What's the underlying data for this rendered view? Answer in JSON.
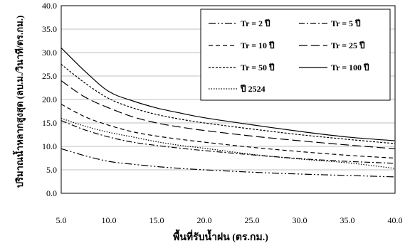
{
  "chart_data": {
    "type": "line",
    "title": "",
    "xlabel": "พื้นที่รับน้ำฝน (ตร.กม.)",
    "ylabel": "ปริมาณน้ำหลากสูงสุด (ลบ.ม./วินาที/ตร.กม.)",
    "xlim": [
      5.0,
      40.0
    ],
    "ylim": [
      0.0,
      40.0
    ],
    "x_ticks": [
      "5.0",
      "10.0",
      "15.0",
      "20.0",
      "25.0",
      "30.0",
      "35.0",
      "40.0"
    ],
    "y_ticks": [
      "0.0",
      "5.0",
      "10.0",
      "15.0",
      "20.0",
      "25.0",
      "30.0",
      "35.0",
      "40.0"
    ],
    "grid": "horizontal",
    "legend_position": "top-right",
    "x": [
      5,
      7.5,
      10,
      12.5,
      15,
      17.5,
      20,
      25,
      30,
      35,
      40
    ],
    "series": [
      {
        "name": "Tr = 2 ปี",
        "dash": "dashdotdot",
        "values": [
          9.5,
          8.0,
          6.8,
          6.2,
          5.7,
          5.3,
          5.0,
          4.5,
          4.1,
          3.8,
          3.5
        ]
      },
      {
        "name": "Tr = 5 ปี",
        "dash": "dashdot",
        "values": [
          15.5,
          13.5,
          12.0,
          10.9,
          10.2,
          9.6,
          9.1,
          8.2,
          7.4,
          6.8,
          6.4
        ]
      },
      {
        "name": "Tr = 10 ปี",
        "dash": "dash",
        "values": [
          19.0,
          16.3,
          14.5,
          13.1,
          12.2,
          11.5,
          10.9,
          9.8,
          8.9,
          8.1,
          7.5
        ]
      },
      {
        "name": "Tr = 25 ปี",
        "dash": "longdash",
        "values": [
          24.0,
          20.5,
          18.2,
          16.3,
          15.0,
          14.1,
          13.4,
          12.2,
          11.2,
          10.3,
          9.5
        ]
      },
      {
        "name": "Tr = 50 ปี",
        "dash": "shortdash",
        "values": [
          27.5,
          23.5,
          20.2,
          18.2,
          16.8,
          15.8,
          15.0,
          13.7,
          12.5,
          11.5,
          10.6
        ]
      },
      {
        "name": "Tr = 100 ปี",
        "dash": "solid",
        "values": [
          31.0,
          26.0,
          21.7,
          19.7,
          18.2,
          17.1,
          16.1,
          14.6,
          13.2,
          12.0,
          11.2
        ]
      },
      {
        "name": "ปี 2524",
        "dash": "dotted",
        "values": [
          16.0,
          14.3,
          13.0,
          12.0,
          11.0,
          10.2,
          9.6,
          8.3,
          7.3,
          6.5,
          5.3
        ]
      }
    ]
  }
}
